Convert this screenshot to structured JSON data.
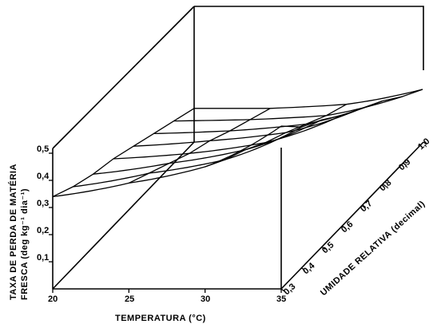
{
  "chart_data": {
    "type": "surface",
    "title": "",
    "xlabel": "TEMPERATURA (°C)",
    "ylabel_line1": "TAXA DE PERDA DE MATÉRIA",
    "ylabel_line2": "FRESCA (deg kg⁻¹ dia⁻¹)",
    "zlabel": "UMIDADE RELATIVA (decimal)",
    "x_ticks": [
      "20",
      "25",
      "30",
      "35"
    ],
    "y_ticks": [
      "0,1",
      "0,2",
      "0,3",
      "0,4",
      "0,5"
    ],
    "z_ticks": [
      "0,3",
      "0,4",
      "0,5",
      "0,6",
      "0,7",
      "0,8",
      "0,9",
      "1,0"
    ],
    "xlim": [
      20,
      35
    ],
    "ylim": [
      0.1,
      0.5
    ],
    "zlim": [
      0.3,
      1.0
    ],
    "x_grid": [
      20,
      25,
      30,
      35
    ],
    "rh_grid": [
      1.0,
      0.9,
      0.8,
      0.7,
      0.6,
      0.5,
      0.4,
      0.3
    ],
    "values_by_rh": {
      "1.0": [
        0.13,
        0.13,
        0.145,
        0.2
      ],
      "0.9": [
        0.16,
        0.165,
        0.18,
        0.25
      ],
      "0.8": [
        0.19,
        0.2,
        0.225,
        0.31
      ],
      "0.7": [
        0.22,
        0.24,
        0.27,
        0.36
      ],
      "0.6": [
        0.25,
        0.27,
        0.31,
        0.41
      ],
      "0.5": [
        0.27,
        0.31,
        0.36,
        0.47
      ],
      "0.4": [
        0.3,
        0.35,
        0.4,
        0.52
      ],
      "0.3": [
        0.34,
        0.39,
        0.45,
        0.6
      ]
    }
  }
}
